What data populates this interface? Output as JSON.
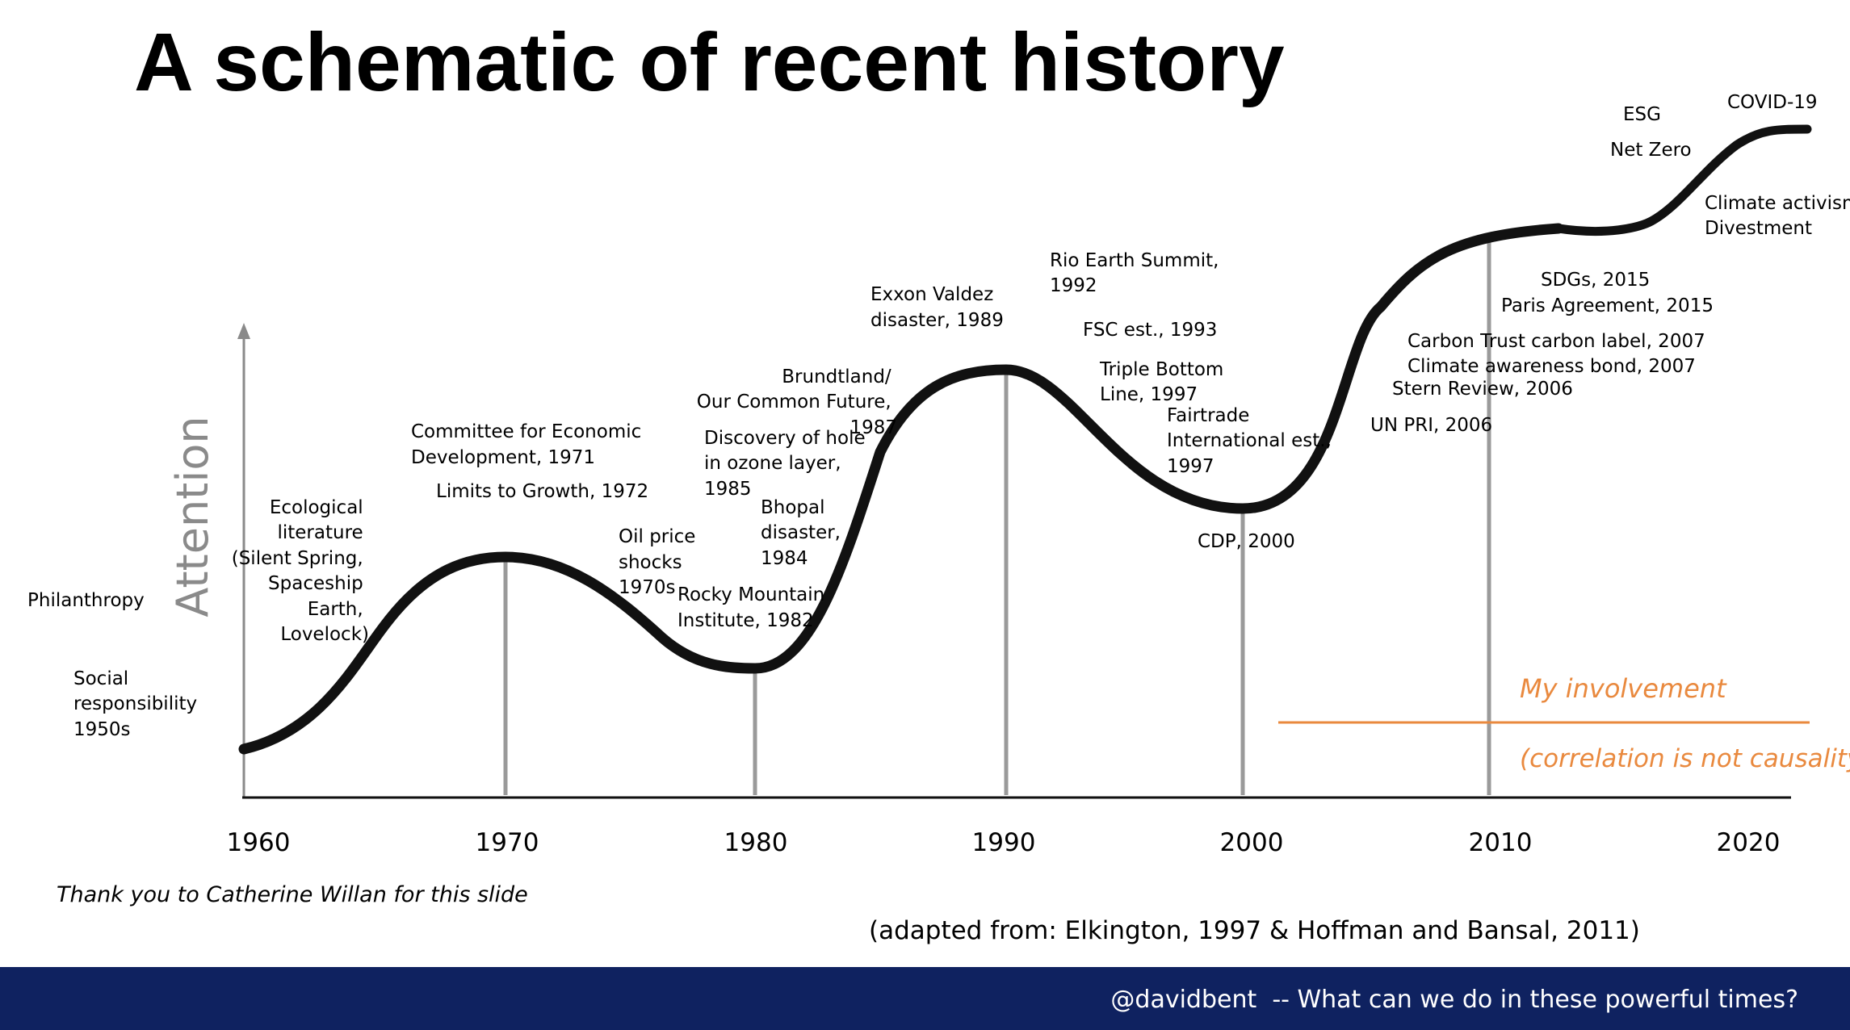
{
  "title": "A schematic of recent history",
  "y_axis_label": "Attention",
  "x_ticks": [
    "1960",
    "1970",
    "1980",
    "1990",
    "2000",
    "2010",
    "2020"
  ],
  "left_labels": {
    "philanthropy": "Philanthropy",
    "social": [
      "Social",
      "responsibility",
      "1950s"
    ]
  },
  "annotations": {
    "ecological": [
      "Ecological",
      "literature",
      "(Silent Spring,",
      "Spaceship",
      "Earth,",
      "Lovelock)"
    ],
    "ced": [
      "Committee for Economic",
      "Development, 1971"
    ],
    "limits": [
      "Limits to Growth, 1972"
    ],
    "oil": [
      "Oil price",
      "shocks",
      "1970s"
    ],
    "rmi": [
      "Rocky Mountain",
      "Institute, 1982"
    ],
    "ozone": [
      "Discovery of hole",
      "in ozone layer,",
      "1985"
    ],
    "bhopal": [
      "Bhopal",
      "disaster,",
      "1984"
    ],
    "brundtland": [
      "Brundtland/",
      "Our Common Future,",
      "1987"
    ],
    "exxon": [
      "Exxon Valdez",
      "disaster, 1989"
    ],
    "rio": [
      "Rio Earth Summit,",
      "1992"
    ],
    "fsc": [
      "FSC est., 1993"
    ],
    "tbl": [
      "Triple Bottom",
      "Line, 1997"
    ],
    "fairtrade": [
      "Fairtrade",
      "International est.,",
      "1997"
    ],
    "cdp": [
      "CDP, 2000"
    ],
    "unpri": [
      "UN PRI, 2006"
    ],
    "stern": [
      "Stern Review, 2006"
    ],
    "carbon": [
      "Carbon Trust carbon label, 2007",
      "Climate awareness bond, 2007"
    ],
    "sdgs": [
      "SDGs, 2015"
    ],
    "paris": [
      "Paris Agreement, 2015"
    ],
    "climate": [
      "Climate activism",
      "Divestment"
    ],
    "esg": [
      "ESG"
    ],
    "netzero": [
      "Net Zero"
    ],
    "covid": [
      "COVID-19"
    ]
  },
  "involvement": {
    "label": "My involvement",
    "note": "(correlation is not causality)",
    "color": "#e9893e"
  },
  "credit": "Thank you to Catherine Willan for this slide",
  "source": "(adapted from: Elkington, 1997 & Hoffman and Bansal, 2011)",
  "footer": "@davidbent  -- What can we do in these powerful times?",
  "colors": {
    "curve": "#111111",
    "axis": "#8a8a8a",
    "footer_bg": "#0f2260",
    "footer_text": "#ffffff"
  }
}
